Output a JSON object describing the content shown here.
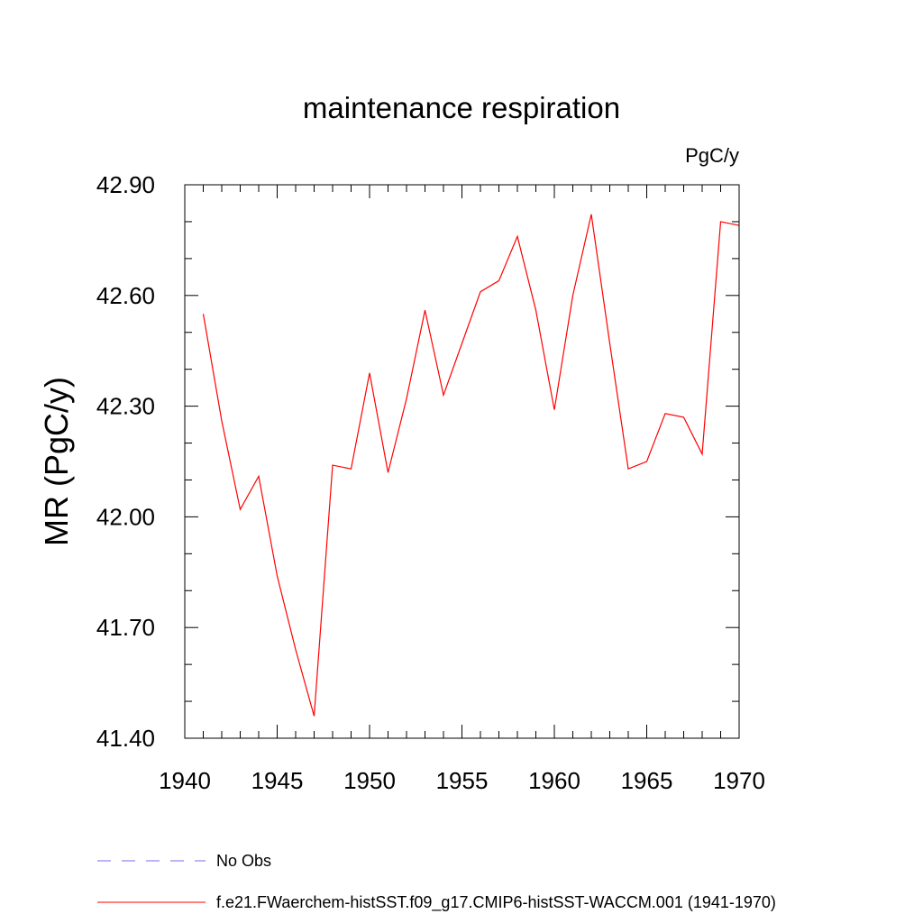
{
  "chart_data": {
    "type": "line",
    "title": "maintenance respiration",
    "units": "PgC/y",
    "ylabel": "MR  (PgC/y)",
    "xlabel": "",
    "xlim": [
      1940,
      1970
    ],
    "ylim": [
      41.4,
      42.9
    ],
    "x_ticks": [
      1940,
      1945,
      1950,
      1955,
      1960,
      1965,
      1970
    ],
    "x_tick_labels": [
      "1940",
      "1945",
      "1950",
      "1955",
      "1960",
      "1965",
      "1970"
    ],
    "y_ticks": [
      41.4,
      41.7,
      42.0,
      42.3,
      42.6,
      42.9
    ],
    "y_tick_labels": [
      "41.40",
      "41.70",
      "42.00",
      "42.30",
      "42.60",
      "42.90"
    ],
    "x_minor_step": 1,
    "y_minor_step": 0.1,
    "grid": false,
    "legend_position": "bottom",
    "legend": [
      {
        "label": "No Obs",
        "color": "#7b68ee",
        "style": "dashed"
      },
      {
        "label": "f.e21.FWaerchem-histSST.f09_g17.CMIP6-histSST-WACCM.001 (1941-1970)",
        "color": "#ff0000",
        "style": "solid"
      }
    ],
    "series": [
      {
        "name": "f.e21.FWaerchem-histSST.f09_g17.CMIP6-histSST-WACCM.001 (1941-1970)",
        "color": "#ff0000",
        "x": [
          1941,
          1942,
          1943,
          1944,
          1945,
          1946,
          1947,
          1948,
          1949,
          1950,
          1951,
          1952,
          1953,
          1954,
          1955,
          1956,
          1957,
          1958,
          1959,
          1960,
          1961,
          1962,
          1963,
          1964,
          1965,
          1966,
          1967,
          1968,
          1969,
          1970
        ],
        "y": [
          42.55,
          42.26,
          42.02,
          42.11,
          41.84,
          41.64,
          41.46,
          42.14,
          42.13,
          42.39,
          42.12,
          42.32,
          42.56,
          42.33,
          42.47,
          42.61,
          42.64,
          42.76,
          42.56,
          42.29,
          42.6,
          42.82,
          42.47,
          42.13,
          42.15,
          42.28,
          42.27,
          42.17,
          42.8,
          42.79
        ]
      }
    ]
  }
}
